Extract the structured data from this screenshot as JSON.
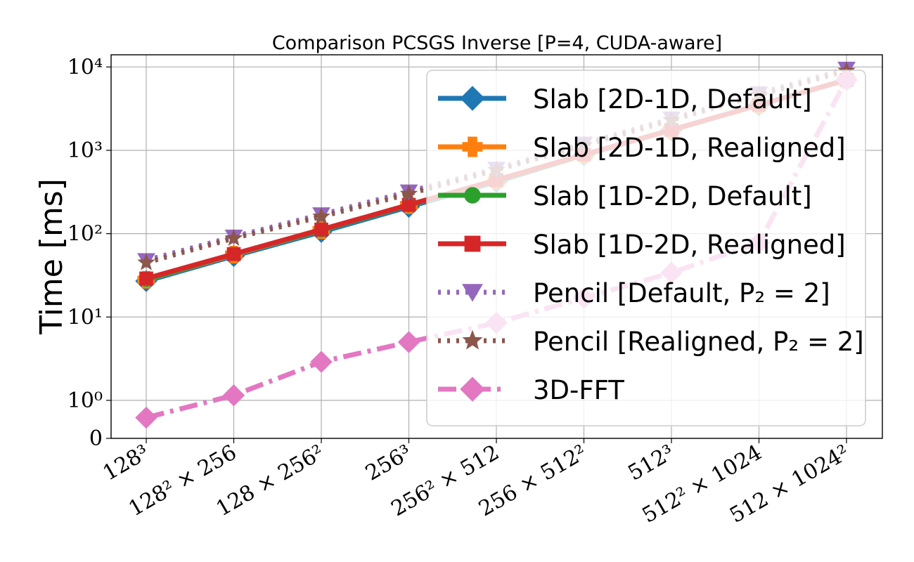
{
  "chart_data": {
    "type": "line",
    "title": "Comparison PCSGS Inverse [P=4, CUDA-aware]",
    "xlabel": "",
    "ylabel": "Time [ms]",
    "yscale": "log",
    "ylim": [
      0.35,
      14000
    ],
    "grid": true,
    "legend_position": "right",
    "categories": [
      "128³",
      "128² × 256",
      "128 × 256²",
      "256³",
      "256² × 512",
      "256 × 512²",
      "512³",
      "512² × 1024",
      "512 × 1024²"
    ],
    "y_ticks": [
      {
        "value": 0.35,
        "label": "0"
      },
      {
        "value": 1,
        "label": "10⁰"
      },
      {
        "value": 10,
        "label": "10¹"
      },
      {
        "value": 100,
        "label": "10²"
      },
      {
        "value": 1000,
        "label": "10³"
      },
      {
        "value": 10000,
        "label": "10⁴"
      }
    ],
    "series": [
      {
        "name": "Slab [2D-1D, Default]",
        "color": "#1f77b4",
        "marker": "diamond",
        "dash": "solid",
        "values": [
          27,
          54,
          105,
          210,
          420,
          880,
          1750,
          3500,
          7000
        ]
      },
      {
        "name": "Slab [2D-1D, Realigned]",
        "color": "#ff7f0e",
        "marker": "plus",
        "dash": "solid",
        "values": [
          28,
          56,
          110,
          220,
          430,
          880,
          1750,
          3500,
          7000
        ]
      },
      {
        "name": "Slab [1D-2D, Default]",
        "color": "#2ca02c",
        "marker": "circle",
        "dash": "solid",
        "values": [
          28,
          57,
          110,
          220,
          430,
          880,
          1750,
          3500,
          7000
        ]
      },
      {
        "name": "Slab [1D-2D, Realigned]",
        "color": "#d62728",
        "marker": "square",
        "dash": "solid",
        "values": [
          29,
          57,
          112,
          222,
          440,
          890,
          1760,
          3500,
          7000
        ]
      },
      {
        "name": "Pencil [Default, P₂ = 2]",
        "color": "#9467bd",
        "marker": "triangle_down",
        "dash": "dotted",
        "values": [
          48,
          92,
          170,
          320,
          600,
          1200,
          2400,
          4800,
          9500
        ]
      },
      {
        "name": "Pencil [Realigned, P₂ = 2]",
        "color": "#8c564b",
        "marker": "star",
        "dash": "dotted",
        "values": [
          45,
          88,
          160,
          300,
          580,
          1150,
          2300,
          4600,
          9000
        ]
      },
      {
        "name": "3D-FFT",
        "color": "#e377c2",
        "marker": "diamond",
        "dash": "dashdot",
        "values": [
          0.62,
          1.15,
          2.9,
          5.0,
          8.5,
          17,
          34,
          78,
          7000
        ]
      }
    ]
  }
}
